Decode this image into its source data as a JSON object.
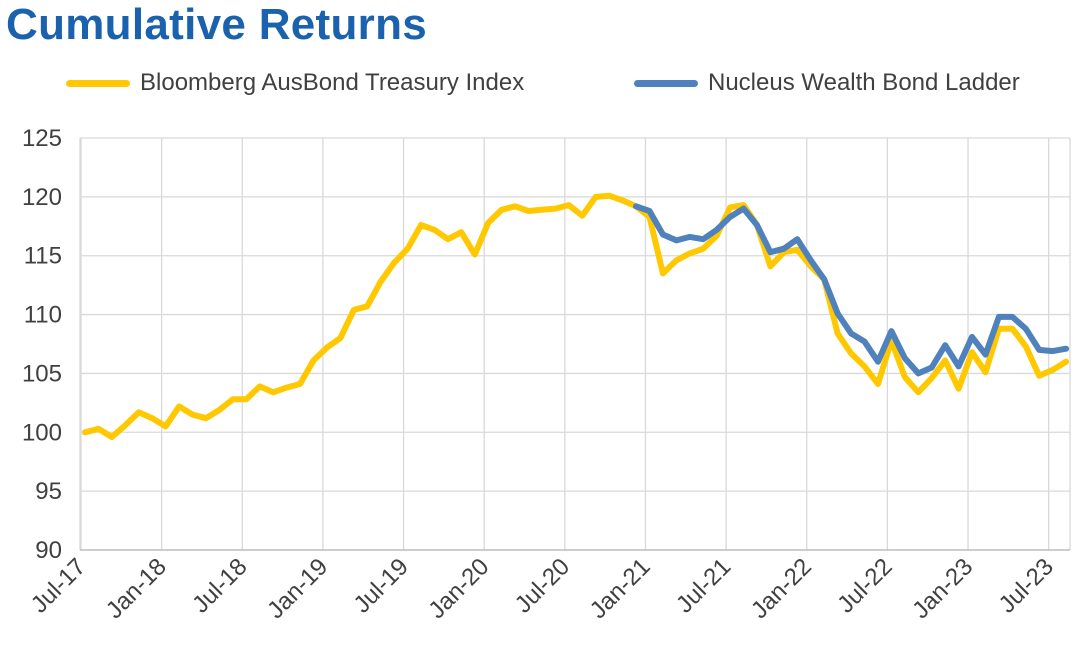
{
  "chart_data": {
    "type": "line",
    "title": "Cumulative Returns",
    "xlabel": "",
    "ylabel": "",
    "ylim": [
      90,
      125
    ],
    "yticks": [
      "90",
      "95",
      "100",
      "105",
      "110",
      "115",
      "120",
      "125"
    ],
    "xticks": [
      "Jul-17",
      "Jan-18",
      "Jul-18",
      "Jan-19",
      "Jul-19",
      "Jan-20",
      "Jul-20",
      "Jan-21",
      "Jul-21",
      "Jan-22",
      "Jul-22",
      "Jan-23",
      "Jul-23"
    ],
    "grid": true,
    "legend_position": "top",
    "series": [
      {
        "name": "Bloomberg AusBond Treasury Index",
        "color": "#ffc800",
        "points": [
          [
            "Jul-17",
            100.0
          ],
          [
            "Aug-17",
            100.3
          ],
          [
            "Sep-17",
            99.6
          ],
          [
            "Oct-17",
            100.6
          ],
          [
            "Nov-17",
            101.7
          ],
          [
            "Dec-17",
            101.2
          ],
          [
            "Jan-18",
            100.5
          ],
          [
            "Feb-18",
            102.2
          ],
          [
            "Mar-18",
            101.5
          ],
          [
            "Apr-18",
            101.2
          ],
          [
            "May-18",
            101.9
          ],
          [
            "Jun-18",
            102.8
          ],
          [
            "Jul-18",
            102.8
          ],
          [
            "Aug-18",
            103.9
          ],
          [
            "Sep-18",
            103.4
          ],
          [
            "Oct-18",
            103.8
          ],
          [
            "Nov-18",
            104.1
          ],
          [
            "Dec-18",
            106.1
          ],
          [
            "Jan-19",
            107.2
          ],
          [
            "Feb-19",
            108.0
          ],
          [
            "Mar-19",
            110.4
          ],
          [
            "Apr-19",
            110.7
          ],
          [
            "May-19",
            112.8
          ],
          [
            "Jun-19",
            114.4
          ],
          [
            "Jul-19",
            115.6
          ],
          [
            "Aug-19",
            117.6
          ],
          [
            "Sep-19",
            117.2
          ],
          [
            "Oct-19",
            116.4
          ],
          [
            "Nov-19",
            117.0
          ],
          [
            "Dec-19",
            115.1
          ],
          [
            "Jan-20",
            117.8
          ],
          [
            "Feb-20",
            118.9
          ],
          [
            "Mar-20",
            119.2
          ],
          [
            "Apr-20",
            118.8
          ],
          [
            "May-20",
            118.9
          ],
          [
            "Jun-20",
            119.0
          ],
          [
            "Jul-20",
            119.3
          ],
          [
            "Aug-20",
            118.4
          ],
          [
            "Sep-20",
            120.0
          ],
          [
            "Oct-20",
            120.1
          ],
          [
            "Nov-20",
            119.7
          ],
          [
            "Dec-20",
            119.2
          ],
          [
            "Jan-21",
            118.3
          ],
          [
            "Feb-21",
            113.5
          ],
          [
            "Mar-21",
            114.6
          ],
          [
            "Apr-21",
            115.2
          ],
          [
            "May-21",
            115.6
          ],
          [
            "Jun-21",
            116.7
          ],
          [
            "Jul-21",
            119.1
          ],
          [
            "Aug-21",
            119.3
          ],
          [
            "Sep-21",
            117.6
          ],
          [
            "Oct-21",
            114.1
          ],
          [
            "Nov-21",
            115.3
          ],
          [
            "Dec-21",
            115.5
          ],
          [
            "Jan-22",
            114.1
          ],
          [
            "Feb-22",
            113.0
          ],
          [
            "Mar-22",
            108.4
          ],
          [
            "Apr-22",
            106.7
          ],
          [
            "May-22",
            105.6
          ],
          [
            "Jun-22",
            104.1
          ],
          [
            "Jul-22",
            107.8
          ],
          [
            "Aug-22",
            104.7
          ],
          [
            "Sep-22",
            103.4
          ],
          [
            "Oct-22",
            104.6
          ],
          [
            "Nov-22",
            106.1
          ],
          [
            "Dec-22",
            103.7
          ],
          [
            "Jan-23",
            106.8
          ],
          [
            "Feb-23",
            105.1
          ],
          [
            "Mar-23",
            108.8
          ],
          [
            "Apr-23",
            108.8
          ],
          [
            "May-23",
            107.3
          ],
          [
            "Jun-23",
            104.8
          ],
          [
            "Jul-23",
            105.3
          ],
          [
            "Aug-23",
            106.0
          ]
        ]
      },
      {
        "name": "Nucleus Wealth Bond Ladder",
        "color": "#4f81bd",
        "points": [
          [
            "Dec-20",
            119.2
          ],
          [
            "Jan-21",
            118.8
          ],
          [
            "Feb-21",
            116.8
          ],
          [
            "Mar-21",
            116.3
          ],
          [
            "Apr-21",
            116.6
          ],
          [
            "May-21",
            116.4
          ],
          [
            "Jun-21",
            117.2
          ],
          [
            "Jul-21",
            118.3
          ],
          [
            "Aug-21",
            119.0
          ],
          [
            "Sep-21",
            117.6
          ],
          [
            "Oct-21",
            115.3
          ],
          [
            "Nov-21",
            115.6
          ],
          [
            "Dec-21",
            116.4
          ],
          [
            "Jan-22",
            114.6
          ],
          [
            "Feb-22",
            113.0
          ],
          [
            "Mar-22",
            110.1
          ],
          [
            "Apr-22",
            108.4
          ],
          [
            "May-22",
            107.7
          ],
          [
            "Jun-22",
            106.0
          ],
          [
            "Jul-22",
            108.6
          ],
          [
            "Aug-22",
            106.3
          ],
          [
            "Sep-22",
            105.0
          ],
          [
            "Oct-22",
            105.5
          ],
          [
            "Nov-22",
            107.4
          ],
          [
            "Dec-22",
            105.6
          ],
          [
            "Jan-23",
            108.1
          ],
          [
            "Feb-23",
            106.6
          ],
          [
            "Mar-23",
            109.8
          ],
          [
            "Apr-23",
            109.8
          ],
          [
            "May-23",
            108.8
          ],
          [
            "Jun-23",
            107.0
          ],
          [
            "Jul-23",
            106.9
          ],
          [
            "Aug-23",
            107.1
          ]
        ]
      }
    ]
  }
}
